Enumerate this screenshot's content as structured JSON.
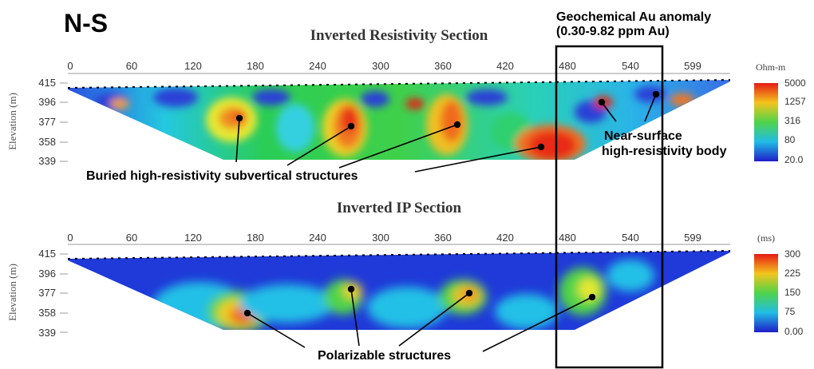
{
  "header": {
    "direction_label": "N-S",
    "anomaly_title_line1": "Geochemical Au anomaly",
    "anomaly_title_line2": "(0.30-9.82 ppm Au)"
  },
  "resistivity_section": {
    "title": "Inverted Resistivity Section",
    "y_axis_label": "Elevation (m)",
    "x_ticks": [
      "0",
      "60",
      "120",
      "180",
      "240",
      "300",
      "360",
      "420",
      "480",
      "540",
      "599"
    ],
    "y_ticks": [
      "415",
      "396",
      "377",
      "358",
      "339"
    ],
    "colorbar_unit": "Ohm-m",
    "colorbar_ticks": [
      "5000",
      "1257",
      "316",
      "80",
      "20.0"
    ],
    "annotation_buried": "Buried high-resistivity subvertical structures",
    "annotation_near_surface_line1": "Near-surface",
    "annotation_near_surface_line2": "high-resistivity body"
  },
  "ip_section": {
    "title": "Inverted IP Section",
    "y_axis_label": "Elevation (m)",
    "x_ticks": [
      "0",
      "60",
      "120",
      "180",
      "240",
      "300",
      "360",
      "420",
      "480",
      "540",
      "599"
    ],
    "y_ticks": [
      "415",
      "396",
      "377",
      "358",
      "339"
    ],
    "colorbar_unit": "(ms)",
    "colorbar_ticks": [
      "300",
      "225",
      "150",
      "75",
      "0.00"
    ],
    "annotation_polarizable": "Polarizable structures"
  },
  "colors": {
    "background": "#ffffff",
    "anomaly_box": "#000000",
    "low_value": "#1a2fd0",
    "high_value": "#e8281c"
  }
}
